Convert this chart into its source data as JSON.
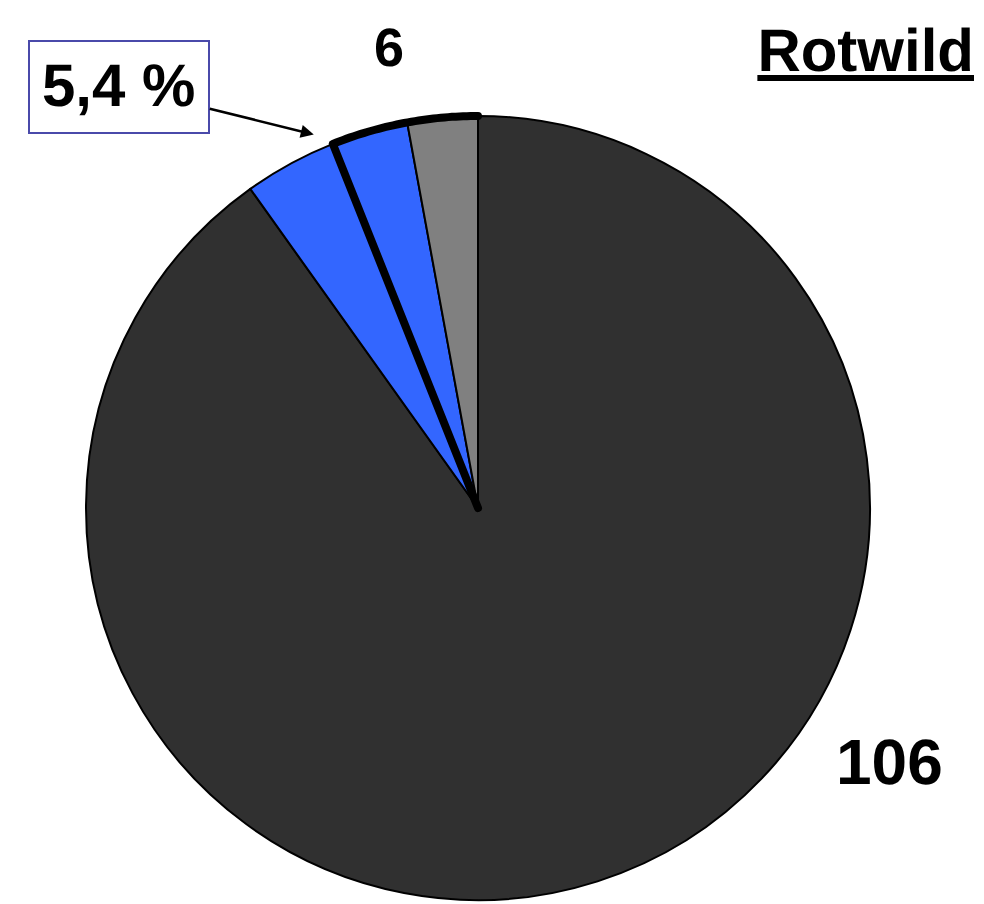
{
  "chart_data": {
    "type": "pie",
    "title": "Rotwild",
    "categories": [
      null,
      null,
      null,
      null
    ],
    "values": [
      106,
      4.5,
      3.7,
      3.4
    ],
    "colors": [
      "#303030",
      "#3366ff",
      "#3366ff",
      "#808080"
    ],
    "value_labels": [
      "106",
      null,
      null,
      null
    ],
    "annotations": [
      "6",
      "5,4 %"
    ]
  }
}
